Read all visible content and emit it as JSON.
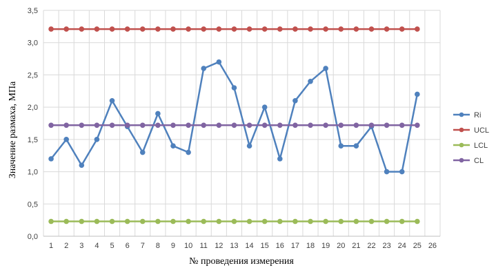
{
  "chart_data": {
    "type": "line",
    "xlabel": "№ проведения измерения",
    "ylabel": "Значение размаха, МПа",
    "x_ticks": [
      "1",
      "2",
      "3",
      "4",
      "5",
      "6",
      "7",
      "8",
      "9",
      "10",
      "11",
      "12",
      "13",
      "14",
      "15",
      "16",
      "17",
      "18",
      "19",
      "20",
      "21",
      "22",
      "23",
      "24",
      "25",
      "26"
    ],
    "y_ticks": [
      "0,0",
      "0,5",
      "1,0",
      "1,5",
      "2,0",
      "2,5",
      "3,0",
      "3,5"
    ],
    "xlim": [
      0.5,
      26.5
    ],
    "ylim": [
      0,
      3.5
    ],
    "grid": "vertical-and-horizontal",
    "legend_position": "right",
    "series": [
      {
        "name": "Ri",
        "color": "#4F81BD",
        "x": [
          1,
          2,
          3,
          4,
          5,
          6,
          7,
          8,
          9,
          10,
          11,
          12,
          13,
          14,
          15,
          16,
          17,
          18,
          19,
          20,
          21,
          22,
          23,
          24,
          25
        ],
        "values": [
          1.2,
          1.5,
          1.1,
          1.5,
          2.1,
          1.7,
          1.3,
          1.9,
          1.4,
          1.3,
          2.6,
          2.7,
          2.3,
          1.4,
          2.0,
          1.2,
          2.1,
          2.4,
          2.6,
          1.4,
          1.4,
          1.7,
          1.0,
          1.0,
          2.2
        ]
      },
      {
        "name": "UCL",
        "color": "#C0504D",
        "x": [
          1,
          2,
          3,
          4,
          5,
          6,
          7,
          8,
          9,
          10,
          11,
          12,
          13,
          14,
          15,
          16,
          17,
          18,
          19,
          20,
          21,
          22,
          23,
          24,
          25
        ],
        "values": [
          3.21,
          3.21,
          3.21,
          3.21,
          3.21,
          3.21,
          3.21,
          3.21,
          3.21,
          3.21,
          3.21,
          3.21,
          3.21,
          3.21,
          3.21,
          3.21,
          3.21,
          3.21,
          3.21,
          3.21,
          3.21,
          3.21,
          3.21,
          3.21,
          3.21
        ]
      },
      {
        "name": "LCL",
        "color": "#9BBB59",
        "x": [
          1,
          2,
          3,
          4,
          5,
          6,
          7,
          8,
          9,
          10,
          11,
          12,
          13,
          14,
          15,
          16,
          17,
          18,
          19,
          20,
          21,
          22,
          23,
          24,
          25
        ],
        "values": [
          0.23,
          0.23,
          0.23,
          0.23,
          0.23,
          0.23,
          0.23,
          0.23,
          0.23,
          0.23,
          0.23,
          0.23,
          0.23,
          0.23,
          0.23,
          0.23,
          0.23,
          0.23,
          0.23,
          0.23,
          0.23,
          0.23,
          0.23,
          0.23,
          0.23
        ]
      },
      {
        "name": "CL",
        "color": "#8064A2",
        "x": [
          1,
          2,
          3,
          4,
          5,
          6,
          7,
          8,
          9,
          10,
          11,
          12,
          13,
          14,
          15,
          16,
          17,
          18,
          19,
          20,
          21,
          22,
          23,
          24,
          25
        ],
        "values": [
          1.72,
          1.72,
          1.72,
          1.72,
          1.72,
          1.72,
          1.72,
          1.72,
          1.72,
          1.72,
          1.72,
          1.72,
          1.72,
          1.72,
          1.72,
          1.72,
          1.72,
          1.72,
          1.72,
          1.72,
          1.72,
          1.72,
          1.72,
          1.72,
          1.72
        ]
      }
    ]
  }
}
